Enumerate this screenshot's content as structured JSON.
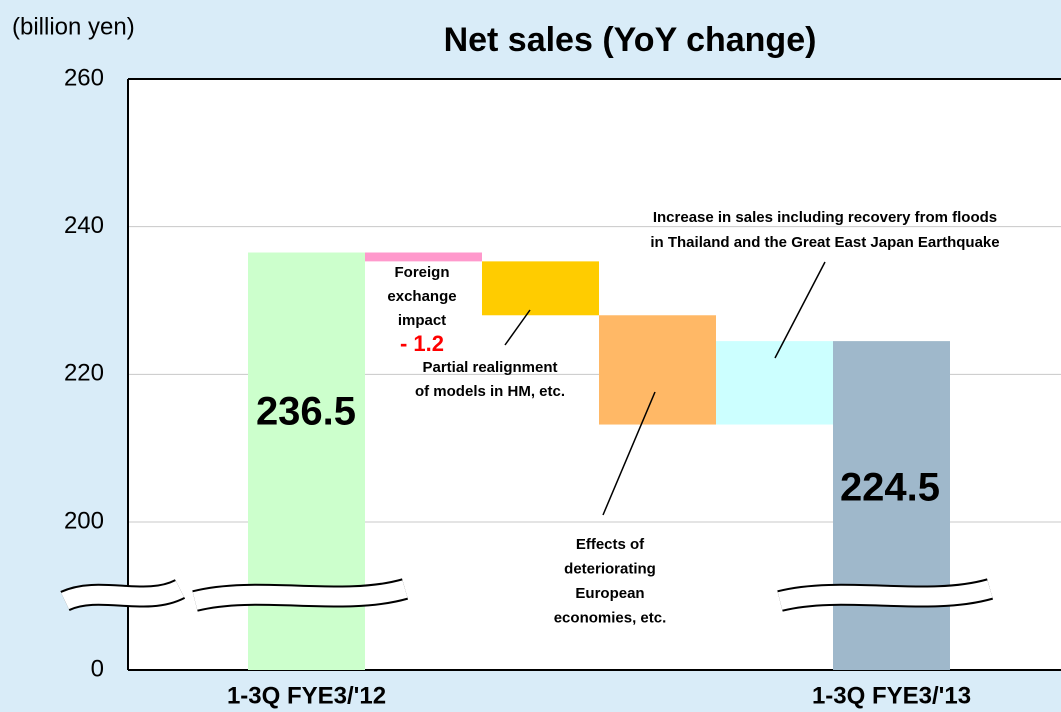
{
  "chart_data": {
    "type": "waterfall",
    "title": "Net sales (YoY change)",
    "y_label": "(billion yen)",
    "categories": [
      "1-3Q FYE3/'12",
      null,
      null,
      null,
      null,
      "1-3Q FYE3/'13"
    ],
    "measures": [
      "absolute",
      "relative",
      "relative",
      "relative",
      "relative",
      "total"
    ],
    "values": [
      236.5,
      -1.2,
      -7.3,
      -14.8,
      11.3,
      224.5
    ],
    "value_labels": [
      "236.5",
      "- 1.2",
      null,
      null,
      null,
      "224.5"
    ],
    "colors": [
      "#ccffcc",
      "#ff99cc",
      "#ffcc00",
      "#ffb866",
      "#ccffff",
      "#9fb8cb"
    ],
    "annotations": [
      {
        "lines": [
          "Foreign",
          "exchange",
          "impact"
        ]
      },
      {
        "lines": [
          "Partial realignment",
          "of models in HM, etc."
        ]
      },
      {
        "lines": [
          "Effects of",
          "deteriorating",
          "European",
          "economies, etc."
        ]
      },
      {
        "lines": [
          "Increase in sales including recovery from floods",
          "in Thailand and the Great East Japan Earthquake"
        ]
      }
    ],
    "ylim": [
      0,
      260
    ],
    "yticks": [
      0,
      200,
      220,
      240,
      260
    ],
    "grid": true
  }
}
